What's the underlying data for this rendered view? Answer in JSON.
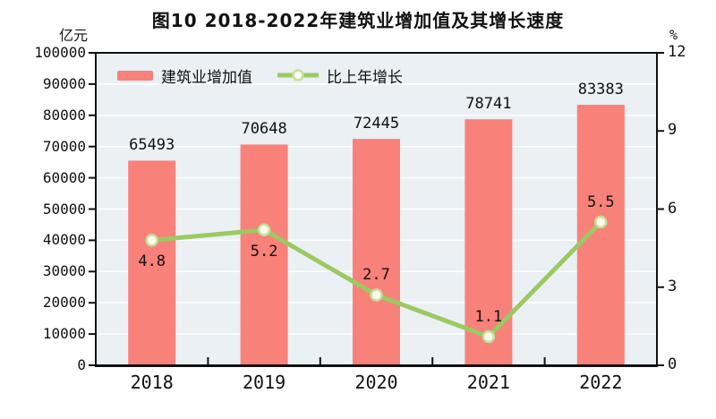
{
  "title": "图10  2018-2022年建筑业增加值及其增长速度",
  "left_axis": {
    "unit": "亿元",
    "min": 0,
    "max": 100000,
    "step": 10000,
    "tick_labels": [
      "0",
      "10000",
      "20000",
      "30000",
      "40000",
      "50000",
      "60000",
      "70000",
      "80000",
      "90000",
      "100000"
    ]
  },
  "right_axis": {
    "unit": "%",
    "min": 0,
    "max": 12,
    "step": 3,
    "tick_labels": [
      "0",
      "3",
      "6",
      "9",
      "12"
    ]
  },
  "chart_data": {
    "type": "bar",
    "categories": [
      "2018",
      "2019",
      "2020",
      "2021",
      "2022"
    ],
    "series": [
      {
        "name": "建筑业增加值",
        "type": "bar",
        "axis": "left",
        "color": "#f8817a",
        "values": [
          65493,
          70648,
          72445,
          78741,
          83383
        ],
        "value_labels": [
          "65493",
          "70648",
          "72445",
          "78741",
          "83383"
        ]
      },
      {
        "name": "比上年增长",
        "type": "line",
        "axis": "right",
        "color": "#9bc962",
        "marker_fill": "#fbfcf0",
        "marker_stroke": "#c3df99",
        "values": [
          4.8,
          5.2,
          2.7,
          1.1,
          5.5
        ],
        "value_labels": [
          "4.8",
          "5.2",
          "2.7",
          "1.1",
          "5.5"
        ],
        "label_side": [
          "below",
          "below",
          "above",
          "above",
          "above"
        ]
      }
    ],
    "title": "图10  2018-2022年建筑业增加值及其增长速度",
    "ylabel_left": "亿元",
    "ylabel_right": "%",
    "ylim_left": [
      0,
      100000
    ],
    "ylim_right": [
      0,
      12
    ],
    "grid": true,
    "legend_position": "top-left-inside",
    "plot_background": "#eaf0f4",
    "gridline_color": "#ffffff",
    "axis_color": "#111111"
  }
}
